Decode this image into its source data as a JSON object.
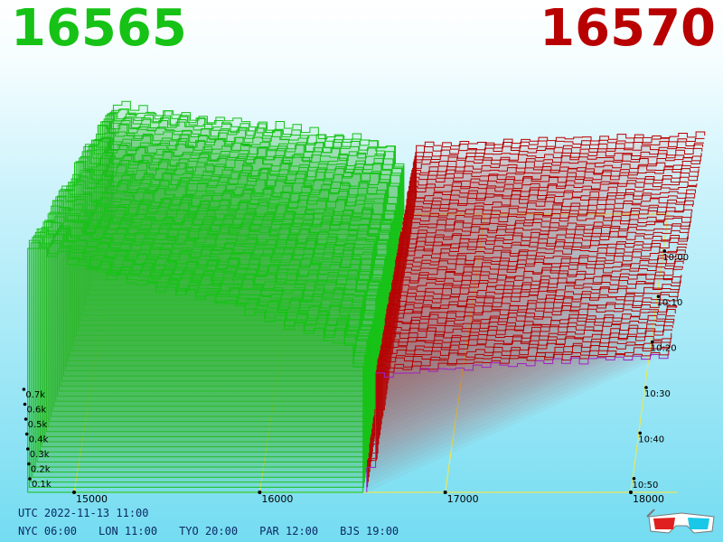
{
  "header": {
    "bid_price": "16565",
    "ask_price": "16570"
  },
  "colors": {
    "bid": "#16c216",
    "ask": "#b80000",
    "axis": "#e8e85a",
    "background_top": "#ffffff",
    "background_bottom": "#74dcf1"
  },
  "chart_data": {
    "type": "area",
    "view": "3d-orderbook-depth-over-time",
    "price_axis": {
      "ticks": [
        "15000",
        "16000",
        "17000",
        "18000"
      ]
    },
    "depth_axis": {
      "ticks": [
        "0.1k",
        "0.2k",
        "0.3k",
        "0.4k",
        "0.5k",
        "0.6k",
        "0.7k"
      ]
    },
    "time_axis": {
      "ticks": [
        "10:00",
        "10:10",
        "10:20",
        "10:30",
        "10:40",
        "10:50"
      ]
    },
    "mid_price": 16567,
    "bid_depth_profile": [
      {
        "price": 14750,
        "depth": 750
      },
      {
        "price": 14900,
        "depth": 740
      },
      {
        "price": 15000,
        "depth": 700
      },
      {
        "price": 15200,
        "depth": 660
      },
      {
        "price": 15500,
        "depth": 620
      },
      {
        "price": 15800,
        "depth": 580
      },
      {
        "price": 16000,
        "depth": 540
      },
      {
        "price": 16200,
        "depth": 500
      },
      {
        "price": 16400,
        "depth": 470
      },
      {
        "price": 16500,
        "depth": 420
      },
      {
        "price": 16560,
        "depth": 0
      }
    ],
    "ask_depth_profile": [
      {
        "price": 16570,
        "depth": 0
      },
      {
        "price": 16600,
        "depth": 360
      },
      {
        "price": 17000,
        "depth": 380
      },
      {
        "price": 17500,
        "depth": 400
      },
      {
        "price": 18000,
        "depth": 410
      },
      {
        "price": 18200,
        "depth": 420
      }
    ]
  },
  "footer": {
    "utc": "UTC 2022-11-13 11:00",
    "zones": [
      "NYC 06:00",
      "LON 11:00",
      "TYO 20:00",
      "PAR 12:00",
      "BJS 19:00"
    ]
  },
  "icons": {
    "glasses": "3d-glasses-icon"
  }
}
